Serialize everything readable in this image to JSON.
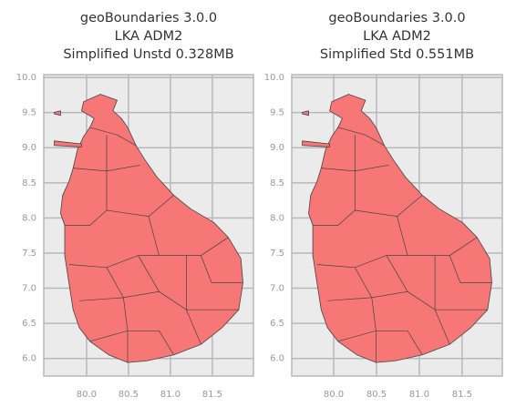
{
  "chart_data": [
    {
      "type": "map",
      "title": [
        "geoBoundaries 3.0.0",
        "LKA ADM2",
        "Simplified Unstd 0.328MB"
      ],
      "color": "#f77676",
      "grid": true,
      "xlim": [
        79.49,
        81.99
      ],
      "ylim": [
        5.75,
        10.04
      ],
      "xticks": [
        {
          "value": 80,
          "label": "80.0"
        },
        80.5,
        {
          "value": 81,
          "label": "81.0"
        },
        81.5
      ],
      "yticks": [
        {
          "value": 6,
          "label": "6.0"
        },
        6.5,
        {
          "value": 7,
          "label": "7.0"
        },
        7.5,
        {
          "value": 8,
          "label": "8.0"
        },
        8.5,
        {
          "value": 9,
          "label": "9.0"
        },
        9.5,
        {
          "value": 10,
          "label": "10.0"
        }
      ]
    },
    {
      "type": "map",
      "title": [
        "geoBoundaries 3.0.0",
        "LKA ADM2",
        "Simplified Std 0.551MB"
      ],
      "color": "#f77676",
      "grid": true,
      "xlim": [
        79.51,
        81.97
      ],
      "ylim": [
        5.75,
        10.04
      ],
      "xticks": [
        {
          "value": 80,
          "label": "80.0"
        },
        80.5,
        {
          "value": 81,
          "label": "81.0"
        },
        81.5
      ],
      "yticks": [
        {
          "value": 6,
          "label": "6.0"
        },
        6.5,
        {
          "value": 7,
          "label": "7.0"
        },
        7.5,
        {
          "value": 8,
          "label": "8.0"
        },
        8.5,
        {
          "value": 9,
          "label": "9.0"
        },
        9.5,
        {
          "value": 10,
          "label": "10.0"
        }
      ]
    }
  ]
}
